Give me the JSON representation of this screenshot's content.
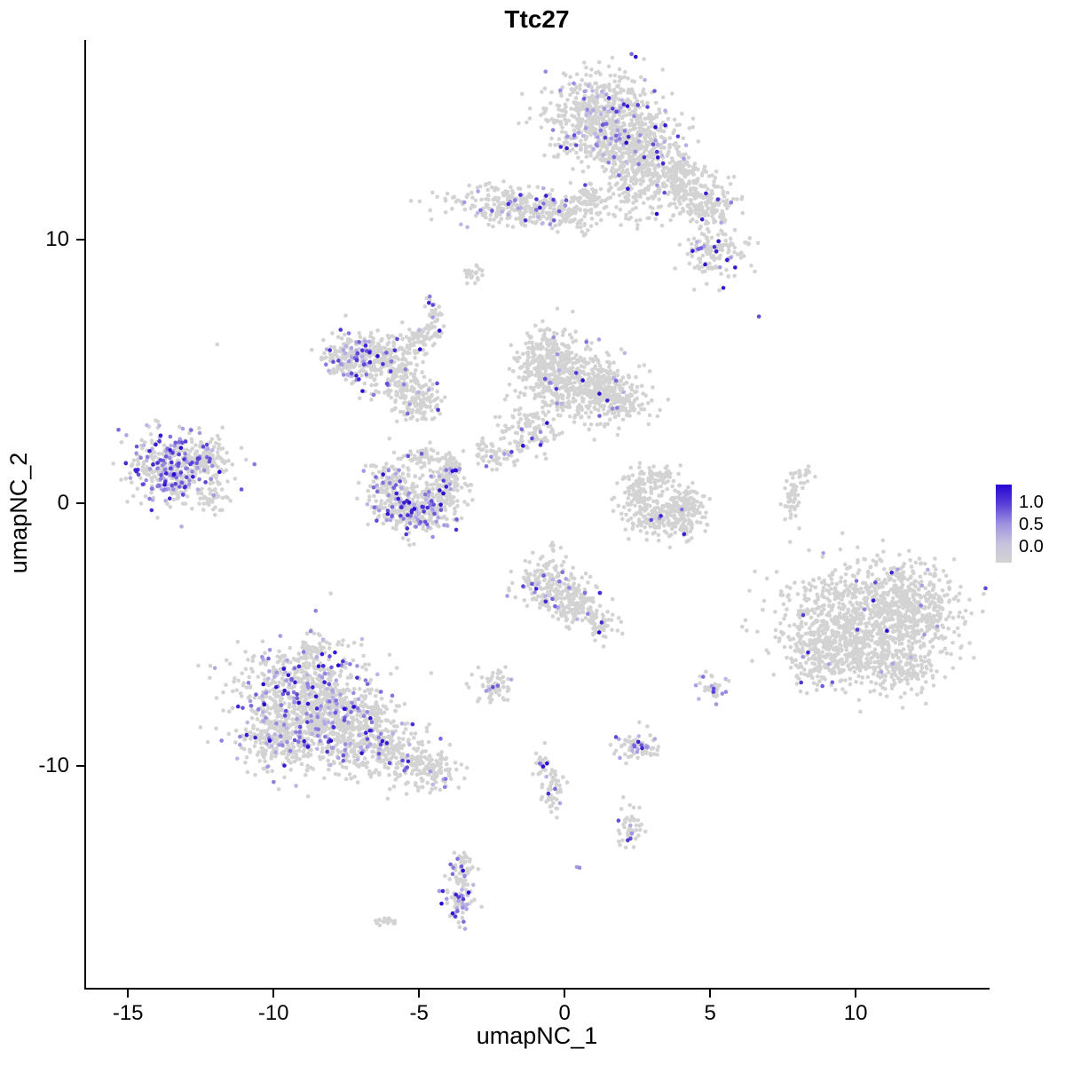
{
  "title": "Ttc27",
  "axes": {
    "x": {
      "label": "umapNC_1",
      "ticks": [
        -15,
        -10,
        -5,
        0,
        5,
        10
      ]
    },
    "y": {
      "label": "umapNC_2",
      "ticks": [
        10,
        0,
        -10
      ]
    }
  },
  "legend": {
    "labels": [
      "1.0",
      "0.5",
      "0.0"
    ],
    "gradient": [
      "#2606d4",
      "#5b3fd8",
      "#9d92de",
      "#c6c2dd",
      "#d3d3d3"
    ]
  },
  "chart_data": {
    "type": "scatter",
    "title": "Ttc27",
    "xlabel": "umapNC_1",
    "ylabel": "umapNC_2",
    "xlim": [
      -16.5,
      14.6
    ],
    "ylim": [
      -18.5,
      17.6
    ],
    "grid": false,
    "legend_position": "right",
    "point_color_low": "#d3d3d3",
    "point_color_mid": "#beb7e6",
    "point_color_high": "#2a07d2",
    "point_radius_px": 2.3,
    "cluster_fields": [
      "center_x",
      "center_y",
      "sd_x",
      "sd_y",
      "n_cells",
      "expressing_fraction"
    ],
    "clusters": [
      [
        1.3,
        14.6,
        0.95,
        0.85,
        650,
        0.13
      ],
      [
        2.6,
        13.3,
        0.8,
        0.7,
        320,
        0.05
      ],
      [
        3.8,
        12.1,
        0.65,
        0.55,
        220,
        0.03
      ],
      [
        4.9,
        11.4,
        0.5,
        0.45,
        140,
        0.05
      ],
      [
        2.2,
        11.9,
        0.4,
        0.7,
        110,
        0.02
      ],
      [
        -1.7,
        11.3,
        1.2,
        0.35,
        260,
        0.1
      ],
      [
        -0.3,
        11.0,
        0.8,
        0.3,
        120,
        0.03
      ],
      [
        0.9,
        11.6,
        0.3,
        0.25,
        40,
        0.0
      ],
      [
        5.2,
        9.5,
        0.55,
        0.5,
        140,
        0.13
      ],
      [
        -3.1,
        8.7,
        0.18,
        0.18,
        22,
        0.0
      ],
      [
        6.7,
        7.1,
        0.03,
        0.03,
        1,
        1.0
      ],
      [
        -4.5,
        6.9,
        0.15,
        0.5,
        40,
        0.1
      ],
      [
        -0.6,
        5.4,
        0.5,
        0.65,
        260,
        0.05
      ],
      [
        0.5,
        4.4,
        1.0,
        0.65,
        420,
        0.03
      ],
      [
        1.8,
        3.9,
        0.6,
        0.4,
        150,
        0.05
      ],
      [
        -1.2,
        2.7,
        0.5,
        0.45,
        110,
        0.06
      ],
      [
        -2.4,
        1.9,
        0.4,
        0.3,
        60,
        0.06
      ],
      [
        -7.3,
        5.5,
        0.5,
        0.5,
        190,
        0.22
      ],
      [
        -6.2,
        5.6,
        0.6,
        0.4,
        170,
        0.07
      ],
      [
        -5.6,
        4.5,
        0.5,
        0.45,
        140,
        0.07
      ],
      [
        -4.9,
        3.7,
        0.4,
        0.35,
        90,
        0.05
      ],
      [
        -5.1,
        6.3,
        0.3,
        0.25,
        55,
        0.03
      ],
      [
        -13.5,
        1.3,
        0.75,
        0.7,
        400,
        0.38
      ],
      [
        -12.3,
        1.6,
        0.5,
        0.45,
        110,
        0.06
      ],
      [
        -12.1,
        0.2,
        0.3,
        0.25,
        35,
        0.03
      ],
      [
        -11.9,
        6.0,
        0.03,
        0.03,
        1,
        0.0
      ],
      [
        -6.0,
        0.6,
        0.45,
        0.55,
        170,
        0.16
      ],
      [
        -5.2,
        -0.4,
        0.6,
        0.4,
        210,
        0.26
      ],
      [
        -4.4,
        0.3,
        0.5,
        0.45,
        170,
        0.1
      ],
      [
        -3.9,
        1.2,
        0.3,
        0.3,
        75,
        0.06
      ],
      [
        -4.8,
        1.7,
        0.4,
        0.22,
        55,
        0.05
      ],
      [
        2.6,
        0.5,
        0.35,
        0.5,
        110,
        0.0
      ],
      [
        3.3,
        -0.6,
        0.6,
        0.35,
        170,
        0.01
      ],
      [
        4.2,
        -0.1,
        0.35,
        0.45,
        110,
        0.01
      ],
      [
        3.4,
        1.0,
        0.3,
        0.2,
        45,
        0.0
      ],
      [
        7.8,
        0.1,
        0.15,
        0.55,
        45,
        0.0
      ],
      [
        8.3,
        1.2,
        0.18,
        0.18,
        15,
        0.0
      ],
      [
        10.3,
        -4.5,
        1.4,
        1.15,
        1000,
        0.015
      ],
      [
        12.0,
        -3.9,
        0.7,
        0.75,
        240,
        0.02
      ],
      [
        8.8,
        -5.8,
        0.6,
        0.6,
        170,
        0.03
      ],
      [
        11.5,
        -6.3,
        0.6,
        0.45,
        140,
        0.01
      ],
      [
        -0.6,
        -3.0,
        0.5,
        0.5,
        170,
        0.09
      ],
      [
        0.4,
        -3.9,
        0.5,
        0.4,
        140,
        0.05
      ],
      [
        1.2,
        -4.7,
        0.3,
        0.3,
        55,
        0.04
      ],
      [
        -8.8,
        -7.6,
        1.25,
        1.15,
        850,
        0.2
      ],
      [
        -7.2,
        -8.6,
        0.9,
        0.75,
        380,
        0.13
      ],
      [
        -9.9,
        -9.0,
        0.6,
        0.55,
        190,
        0.1
      ],
      [
        -5.9,
        -9.6,
        0.65,
        0.5,
        170,
        0.07
      ],
      [
        -4.6,
        -10.2,
        0.5,
        0.4,
        110,
        0.09
      ],
      [
        -8.7,
        -5.6,
        0.3,
        0.3,
        45,
        0.1
      ],
      [
        -2.4,
        -6.9,
        0.35,
        0.3,
        65,
        0.1
      ],
      [
        5.1,
        -7.0,
        0.2,
        0.28,
        40,
        0.3
      ],
      [
        2.5,
        -9.3,
        0.4,
        0.25,
        75,
        0.16
      ],
      [
        -0.8,
        -9.8,
        0.15,
        0.3,
        28,
        0.1
      ],
      [
        -0.4,
        -11.0,
        0.2,
        0.5,
        50,
        0.14
      ],
      [
        2.3,
        -12.3,
        0.22,
        0.4,
        45,
        0.12
      ],
      [
        -3.5,
        -13.9,
        0.2,
        0.4,
        40,
        0.15
      ],
      [
        -3.6,
        -15.0,
        0.25,
        0.45,
        80,
        0.38
      ],
      [
        0.5,
        -13.9,
        0.04,
        0.04,
        2,
        0.9
      ],
      [
        -6.2,
        -15.9,
        0.25,
        0.1,
        18,
        0.0
      ]
    ]
  }
}
